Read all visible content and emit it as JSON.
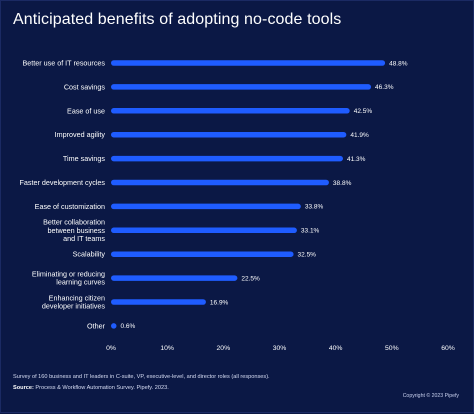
{
  "header": {
    "title": "Anticipated benefits of adopting no-code tools"
  },
  "footer": {
    "survey": "Survey of 160 business and IT leaders in C-suite, VP, executive-level, and director roles (all responses).",
    "source_label": "Source:",
    "source_text": " Process & Workflow Automation Survey. Pipefy. 2023.",
    "copyright": "Copyright © 2023 Pipefy"
  },
  "colors": {
    "background": "#0b1845",
    "bar": "#1f5cff",
    "grid": "#3a4a82"
  },
  "chart_data": {
    "type": "bar",
    "orientation": "horizontal",
    "title": "Anticipated benefits of adopting no-code tools",
    "xlabel": "",
    "ylabel": "",
    "xlim": [
      0,
      60
    ],
    "x_ticks": [
      "0%",
      "10%",
      "20%",
      "30%",
      "40%",
      "50%",
      "60%"
    ],
    "categories": [
      [
        "Better use of IT resources"
      ],
      [
        "Cost savings"
      ],
      [
        "Ease of use"
      ],
      [
        "Improved agility"
      ],
      [
        "Time savings"
      ],
      [
        "Faster development cycles"
      ],
      [
        "Ease of customization"
      ],
      [
        "Better collaboration",
        "between business",
        "and IT teams"
      ],
      [
        "Scalability"
      ],
      [
        "Eliminating or reducing",
        "learning curves"
      ],
      [
        "Enhancing citizen",
        "developer initiatives"
      ],
      [
        "Other"
      ]
    ],
    "values": [
      48.8,
      46.3,
      42.5,
      41.9,
      41.3,
      38.8,
      33.8,
      33.1,
      32.5,
      22.5,
      16.9,
      0.6
    ],
    "value_labels": [
      "48.8%",
      "46.3%",
      "42.5%",
      "41.9%",
      "41.3%",
      "38.8%",
      "33.8%",
      "33.1%",
      "32.5%",
      "22.5%",
      "16.9%",
      "0.6%"
    ],
    "grid": false,
    "legend": "none"
  }
}
